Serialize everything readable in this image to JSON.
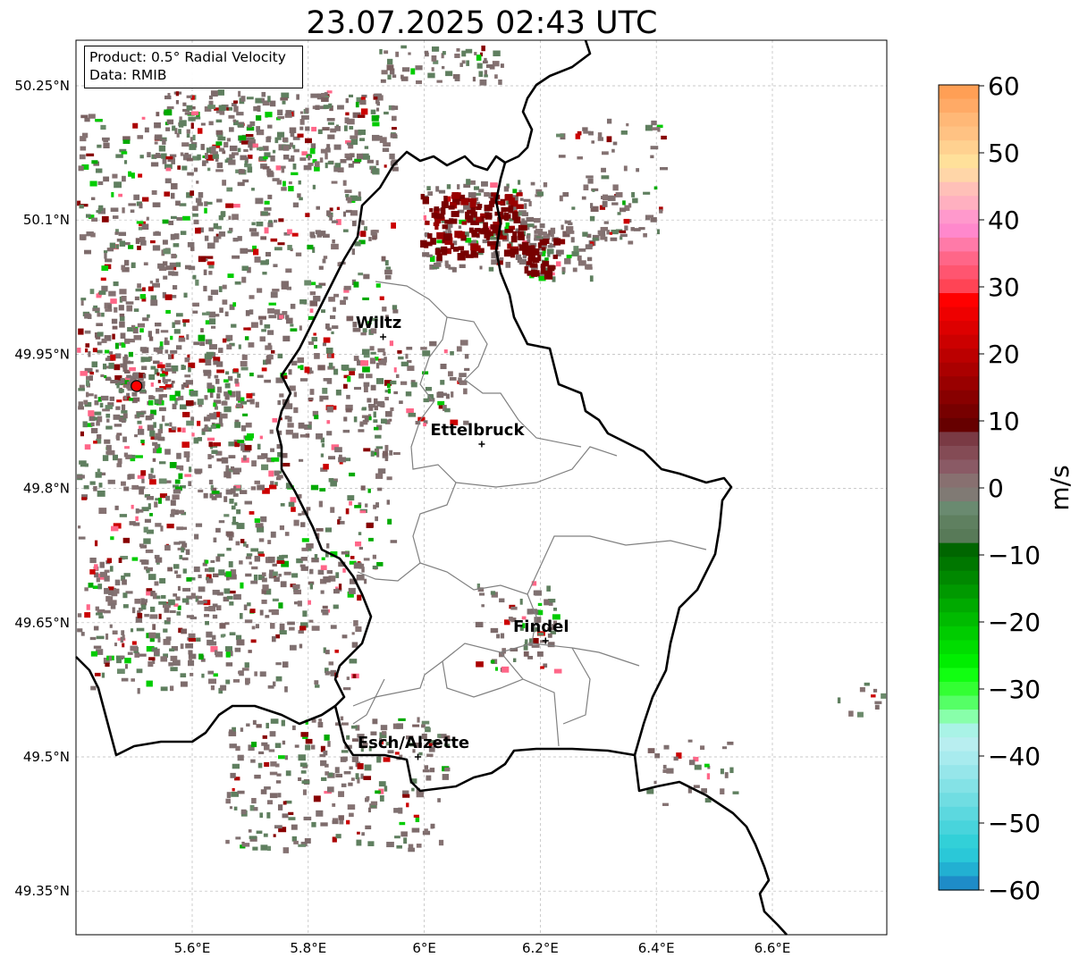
{
  "title": "23.07.2025 02:43 UTC",
  "info": {
    "product": "Product: 0.5° Radial Velocity",
    "data": "Data: RMIB"
  },
  "axes": {
    "lat_ticks": [
      "50.25°N",
      "50.1°N",
      "49.95°N",
      "49.8°N",
      "49.65°N",
      "49.5°N",
      "49.35°N"
    ],
    "lon_ticks": [
      "5.6°E",
      "5.8°E",
      "6°E",
      "6.2°E",
      "6.4°E",
      "6.6°E"
    ]
  },
  "colorbar": {
    "unit": "m/s",
    "ticks": [
      "60",
      "50",
      "40",
      "30",
      "20",
      "10",
      "0",
      "−10",
      "−20",
      "−30",
      "−40",
      "−50",
      "−60"
    ],
    "min": -60,
    "max": 60
  },
  "cities": [
    {
      "name": "Wiltz",
      "lon": 5.93,
      "lat": 49.97
    },
    {
      "name": "Ettelbruck",
      "lon": 6.1,
      "lat": 49.85
    },
    {
      "name": "Findel",
      "lon": 6.21,
      "lat": 49.63
    },
    {
      "name": "Esch/Alzette",
      "lon": 5.99,
      "lat": 49.5
    }
  ],
  "radar_site": {
    "lon": 5.505,
    "lat": 49.915
  },
  "colors": {
    "border": "#000000",
    "canton_lines": "#808080",
    "radar_marker": "#ff0000",
    "grid": "#b0b0b0"
  }
}
